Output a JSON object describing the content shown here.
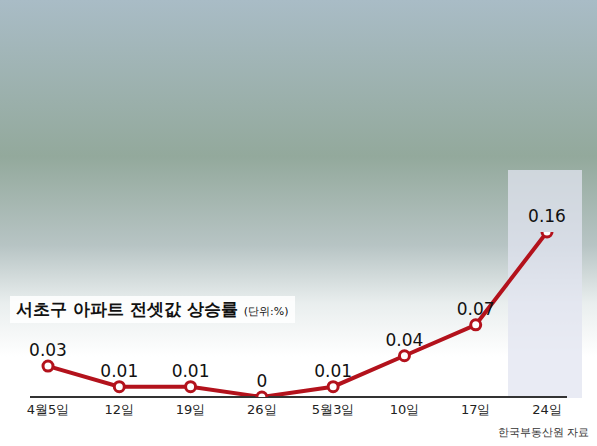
{
  "chart_data": {
    "type": "line",
    "title": "서초구 아파트 전셋값 상승률",
    "subtitle": "(단위:%)",
    "categories": [
      "4월5일",
      "12일",
      "19일",
      "26일",
      "5월3일",
      "10일",
      "17일",
      "24일"
    ],
    "values": [
      0.03,
      0.01,
      0.01,
      0,
      0.01,
      0.04,
      0.07,
      0.16
    ],
    "color": "#b3121c",
    "ylim": [
      0,
      0.16
    ],
    "data_labels": true,
    "tick_labels": "x",
    "grid": false,
    "marker": "circle",
    "annotations": [
      "한국부동산원 자료"
    ]
  }
}
